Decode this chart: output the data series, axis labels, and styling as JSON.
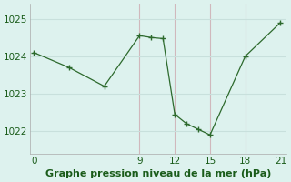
{
  "x": [
    0,
    3,
    6,
    9,
    10,
    11,
    12,
    13,
    14,
    15,
    18,
    21
  ],
  "y": [
    1024.1,
    1023.7,
    1023.2,
    1024.55,
    1024.5,
    1024.47,
    1022.45,
    1022.2,
    1022.05,
    1021.9,
    1024.0,
    1024.9
  ],
  "xticks": [
    0,
    9,
    12,
    15,
    18,
    21
  ],
  "yticks": [
    1022,
    1023,
    1024,
    1025
  ],
  "ylim": [
    1021.4,
    1025.4
  ],
  "xlim": [
    -0.3,
    21.5
  ],
  "line_color": "#2d6a2d",
  "marker": "+",
  "marker_size": 4,
  "marker_color": "#2d6a2d",
  "bg_color": "#ddf2ee",
  "grid_color_major": "#c8e0dc",
  "grid_color_minor": "#e8d8dc",
  "xlabel": "Graphe pression niveau de la mer (hPa)",
  "xlabel_color": "#1a5c1a",
  "xlabel_fontsize": 8,
  "tick_color": "#1a5c1a",
  "tick_fontsize": 7.5,
  "figsize": [
    3.2,
    2.0
  ],
  "dpi": 100
}
